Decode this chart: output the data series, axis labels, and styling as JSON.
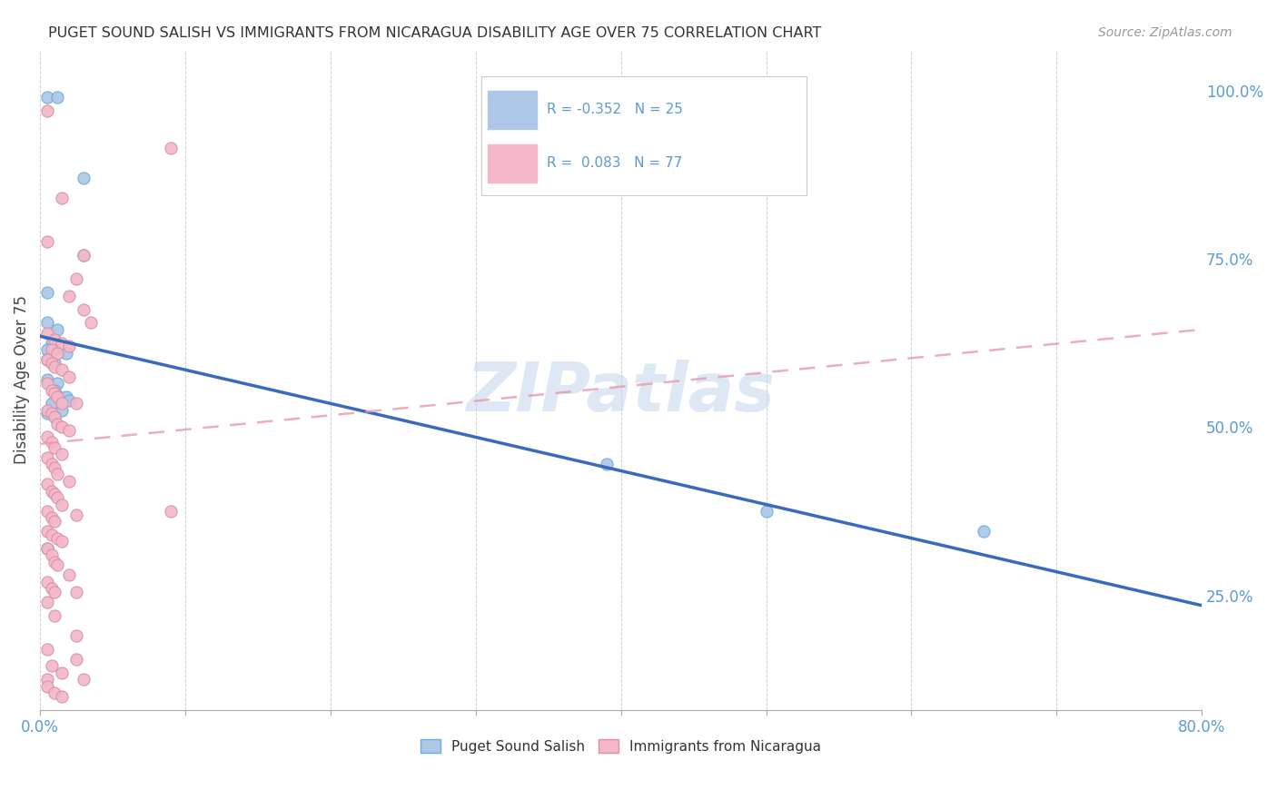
{
  "title": "PUGET SOUND SALISH VS IMMIGRANTS FROM NICARAGUA DISABILITY AGE OVER 75 CORRELATION CHART",
  "source": "Source: ZipAtlas.com",
  "ylabel": "Disability Age Over 75",
  "right_yticks": [
    "100.0%",
    "75.0%",
    "50.0%",
    "25.0%"
  ],
  "right_ytick_vals": [
    1.0,
    0.75,
    0.5,
    0.25
  ],
  "blue_scatter": [
    [
      0.005,
      0.99
    ],
    [
      0.012,
      0.99
    ],
    [
      0.03,
      0.87
    ],
    [
      0.005,
      0.7
    ],
    [
      0.03,
      0.755
    ],
    [
      0.005,
      0.655
    ],
    [
      0.012,
      0.645
    ],
    [
      0.008,
      0.625
    ],
    [
      0.005,
      0.615
    ],
    [
      0.01,
      0.615
    ],
    [
      0.018,
      0.61
    ],
    [
      0.005,
      0.6
    ],
    [
      0.01,
      0.595
    ],
    [
      0.005,
      0.57
    ],
    [
      0.012,
      0.565
    ],
    [
      0.01,
      0.555
    ],
    [
      0.013,
      0.545
    ],
    [
      0.018,
      0.545
    ],
    [
      0.02,
      0.54
    ],
    [
      0.008,
      0.535
    ],
    [
      0.015,
      0.525
    ],
    [
      0.005,
      0.52
    ],
    [
      0.01,
      0.515
    ],
    [
      0.005,
      0.32
    ],
    [
      0.39,
      0.445
    ],
    [
      0.5,
      0.375
    ],
    [
      0.65,
      0.345
    ]
  ],
  "pink_scatter": [
    [
      0.005,
      0.97
    ],
    [
      0.09,
      0.915
    ],
    [
      0.015,
      0.84
    ],
    [
      0.005,
      0.775
    ],
    [
      0.03,
      0.755
    ],
    [
      0.025,
      0.72
    ],
    [
      0.02,
      0.695
    ],
    [
      0.03,
      0.675
    ],
    [
      0.035,
      0.655
    ],
    [
      0.005,
      0.64
    ],
    [
      0.01,
      0.63
    ],
    [
      0.015,
      0.625
    ],
    [
      0.02,
      0.62
    ],
    [
      0.008,
      0.615
    ],
    [
      0.012,
      0.61
    ],
    [
      0.005,
      0.6
    ],
    [
      0.008,
      0.595
    ],
    [
      0.01,
      0.59
    ],
    [
      0.015,
      0.585
    ],
    [
      0.02,
      0.575
    ],
    [
      0.005,
      0.565
    ],
    [
      0.008,
      0.555
    ],
    [
      0.01,
      0.55
    ],
    [
      0.012,
      0.545
    ],
    [
      0.015,
      0.535
    ],
    [
      0.005,
      0.525
    ],
    [
      0.008,
      0.52
    ],
    [
      0.01,
      0.515
    ],
    [
      0.012,
      0.505
    ],
    [
      0.015,
      0.5
    ],
    [
      0.02,
      0.495
    ],
    [
      0.005,
      0.485
    ],
    [
      0.008,
      0.478
    ],
    [
      0.01,
      0.47
    ],
    [
      0.015,
      0.46
    ],
    [
      0.005,
      0.455
    ],
    [
      0.008,
      0.445
    ],
    [
      0.01,
      0.44
    ],
    [
      0.012,
      0.43
    ],
    [
      0.02,
      0.42
    ],
    [
      0.005,
      0.415
    ],
    [
      0.008,
      0.405
    ],
    [
      0.01,
      0.4
    ],
    [
      0.012,
      0.395
    ],
    [
      0.015,
      0.385
    ],
    [
      0.025,
      0.535
    ],
    [
      0.005,
      0.375
    ],
    [
      0.008,
      0.365
    ],
    [
      0.01,
      0.36
    ],
    [
      0.005,
      0.345
    ],
    [
      0.008,
      0.34
    ],
    [
      0.012,
      0.335
    ],
    [
      0.015,
      0.33
    ],
    [
      0.025,
      0.37
    ],
    [
      0.005,
      0.32
    ],
    [
      0.008,
      0.31
    ],
    [
      0.01,
      0.3
    ],
    [
      0.012,
      0.295
    ],
    [
      0.02,
      0.28
    ],
    [
      0.005,
      0.27
    ],
    [
      0.008,
      0.26
    ],
    [
      0.01,
      0.255
    ],
    [
      0.025,
      0.255
    ],
    [
      0.005,
      0.24
    ],
    [
      0.01,
      0.22
    ],
    [
      0.025,
      0.19
    ],
    [
      0.09,
      0.375
    ],
    [
      0.005,
      0.17
    ],
    [
      0.025,
      0.155
    ],
    [
      0.008,
      0.145
    ],
    [
      0.015,
      0.135
    ],
    [
      0.005,
      0.125
    ],
    [
      0.03,
      0.125
    ],
    [
      0.005,
      0.115
    ],
    [
      0.01,
      0.105
    ],
    [
      0.015,
      0.1
    ]
  ],
  "xlim": [
    0,
    0.8
  ],
  "ylim": [
    0.08,
    1.06
  ],
  "blue_line": {
    "x0": 0.0,
    "x1": 0.8,
    "y0": 0.635,
    "y1": 0.235
  },
  "pink_line": {
    "x0": 0.0,
    "x1": 0.8,
    "y0": 0.475,
    "y1": 0.645
  },
  "background_color": "#ffffff",
  "watermark": "ZIPatlas",
  "blue_dot_color": "#aec6e8",
  "blue_dot_edge": "#6baed6",
  "pink_dot_color": "#f4b8c8",
  "pink_dot_edge": "#d88fa8",
  "blue_line_color": "#3a6abf",
  "pink_line_color": "#e899b0",
  "axis_tick_color": "#5b9bd5",
  "grid_color": "#c8c8c8",
  "title_color": "#333333",
  "source_color": "#999999"
}
